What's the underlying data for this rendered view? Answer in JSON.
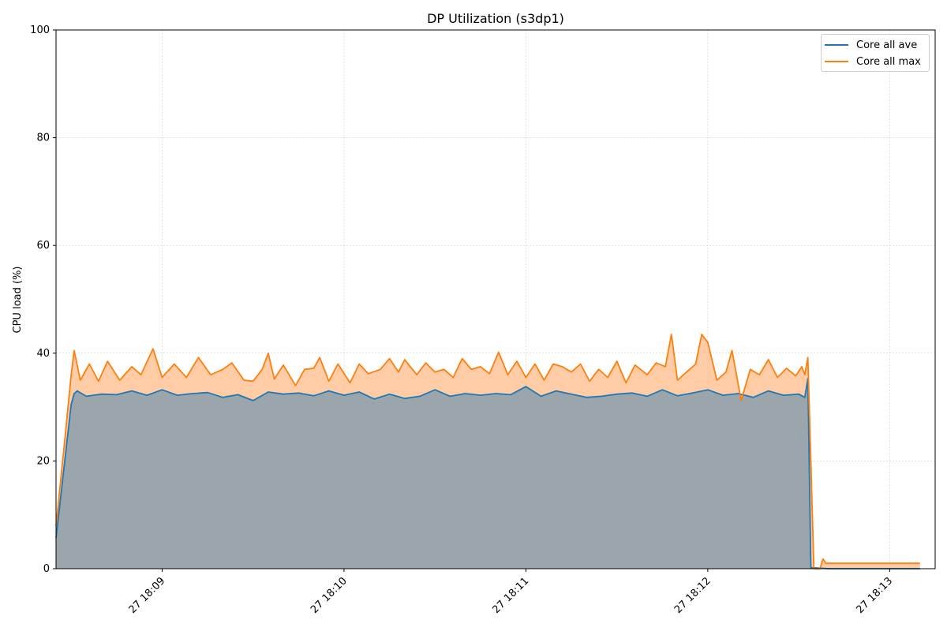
{
  "chart_data": {
    "type": "area",
    "title": "DP Utilization (s3dp1)",
    "xlabel": "",
    "ylabel": "CPU load (%)",
    "x_type": "time",
    "xlim": [
      "18:08:25",
      "18:13:15"
    ],
    "ylim": [
      0,
      100
    ],
    "yticks": [
      0,
      20,
      40,
      60,
      80,
      100
    ],
    "xticks": [
      {
        "time": "18:09:00",
        "label": "27 18:09"
      },
      {
        "time": "18:10:00",
        "label": "27 18:10"
      },
      {
        "time": "18:11:00",
        "label": "27 18:11"
      },
      {
        "time": "18:12:00",
        "label": "27 18:12"
      },
      {
        "time": "18:13:00",
        "label": "27 18:13"
      }
    ],
    "grid": true,
    "legend_position": "top-right",
    "series": [
      {
        "name": "Core all ave",
        "color": "#1f77b4",
        "fill": "#1f77b4",
        "points": [
          [
            "18:08:25",
            5.7
          ],
          [
            "18:08:30",
            30.5
          ],
          [
            "18:08:31",
            32.5
          ],
          [
            "18:08:32",
            33.0
          ],
          [
            "18:08:35",
            32.0
          ],
          [
            "18:08:40",
            32.4
          ],
          [
            "18:08:45",
            32.3
          ],
          [
            "18:08:50",
            33.0
          ],
          [
            "18:08:55",
            32.2
          ],
          [
            "18:09:00",
            33.2
          ],
          [
            "18:09:05",
            32.2
          ],
          [
            "18:09:10",
            32.5
          ],
          [
            "18:09:15",
            32.7
          ],
          [
            "18:09:20",
            31.8
          ],
          [
            "18:09:25",
            32.3
          ],
          [
            "18:09:30",
            31.2
          ],
          [
            "18:09:35",
            32.8
          ],
          [
            "18:09:40",
            32.4
          ],
          [
            "18:09:45",
            32.6
          ],
          [
            "18:09:50",
            32.1
          ],
          [
            "18:09:55",
            33.0
          ],
          [
            "18:10:00",
            32.2
          ],
          [
            "18:10:05",
            32.8
          ],
          [
            "18:10:10",
            31.5
          ],
          [
            "18:10:15",
            32.4
          ],
          [
            "18:10:20",
            31.6
          ],
          [
            "18:10:25",
            32.0
          ],
          [
            "18:10:30",
            33.2
          ],
          [
            "18:10:35",
            32.0
          ],
          [
            "18:10:40",
            32.5
          ],
          [
            "18:10:45",
            32.2
          ],
          [
            "18:10:50",
            32.5
          ],
          [
            "18:10:55",
            32.3
          ],
          [
            "18:11:00",
            33.8
          ],
          [
            "18:11:05",
            32.0
          ],
          [
            "18:11:10",
            33.0
          ],
          [
            "18:11:15",
            32.4
          ],
          [
            "18:11:20",
            31.8
          ],
          [
            "18:11:25",
            32.0
          ],
          [
            "18:11:30",
            32.4
          ],
          [
            "18:11:35",
            32.6
          ],
          [
            "18:11:40",
            32.0
          ],
          [
            "18:11:45",
            33.2
          ],
          [
            "18:11:50",
            32.1
          ],
          [
            "18:11:55",
            32.6
          ],
          [
            "18:12:00",
            33.2
          ],
          [
            "18:12:05",
            32.2
          ],
          [
            "18:12:10",
            32.5
          ],
          [
            "18:12:15",
            31.8
          ],
          [
            "18:12:20",
            33.0
          ],
          [
            "18:12:25",
            32.2
          ],
          [
            "18:12:30",
            32.4
          ],
          [
            "18:12:32",
            31.8
          ],
          [
            "18:12:33",
            35.3
          ],
          [
            "18:12:34",
            0.2
          ],
          [
            "18:12:40",
            0.0
          ],
          [
            "18:13:10",
            0.0
          ]
        ]
      },
      {
        "name": "Core all max",
        "color": "#ff7f0e",
        "fill": "#ffbb88",
        "points": [
          [
            "18:08:25",
            8.0
          ],
          [
            "18:08:28",
            24.5
          ],
          [
            "18:08:30",
            36.0
          ],
          [
            "18:08:31",
            40.5
          ],
          [
            "18:08:33",
            35.0
          ],
          [
            "18:08:36",
            38.0
          ],
          [
            "18:08:39",
            34.8
          ],
          [
            "18:08:42",
            38.5
          ],
          [
            "18:08:46",
            35.0
          ],
          [
            "18:08:50",
            37.5
          ],
          [
            "18:08:53",
            36.0
          ],
          [
            "18:08:57",
            40.8
          ],
          [
            "18:09:00",
            35.5
          ],
          [
            "18:09:04",
            38.0
          ],
          [
            "18:09:08",
            35.5
          ],
          [
            "18:09:12",
            39.2
          ],
          [
            "18:09:16",
            36.0
          ],
          [
            "18:09:20",
            37.0
          ],
          [
            "18:09:23",
            38.2
          ],
          [
            "18:09:27",
            35.0
          ],
          [
            "18:09:30",
            34.8
          ],
          [
            "18:09:33",
            37.0
          ],
          [
            "18:09:35",
            40.0
          ],
          [
            "18:09:37",
            35.2
          ],
          [
            "18:09:40",
            37.8
          ],
          [
            "18:09:44",
            34.0
          ],
          [
            "18:09:47",
            37.0
          ],
          [
            "18:09:50",
            37.2
          ],
          [
            "18:09:52",
            39.2
          ],
          [
            "18:09:55",
            34.8
          ],
          [
            "18:09:58",
            38.0
          ],
          [
            "18:10:02",
            34.5
          ],
          [
            "18:10:05",
            38.0
          ],
          [
            "18:10:08",
            36.2
          ],
          [
            "18:10:12",
            37.0
          ],
          [
            "18:10:15",
            39.0
          ],
          [
            "18:10:18",
            36.5
          ],
          [
            "18:10:20",
            38.8
          ],
          [
            "18:10:24",
            36.0
          ],
          [
            "18:10:27",
            38.2
          ],
          [
            "18:10:30",
            36.5
          ],
          [
            "18:10:33",
            37.0
          ],
          [
            "18:10:36",
            35.5
          ],
          [
            "18:10:39",
            39.0
          ],
          [
            "18:10:42",
            37.0
          ],
          [
            "18:10:45",
            37.5
          ],
          [
            "18:10:48",
            36.2
          ],
          [
            "18:10:51",
            40.2
          ],
          [
            "18:10:54",
            36.0
          ],
          [
            "18:10:57",
            38.5
          ],
          [
            "18:11:00",
            35.5
          ],
          [
            "18:11:03",
            38.0
          ],
          [
            "18:11:06",
            35.0
          ],
          [
            "18:11:09",
            38.0
          ],
          [
            "18:11:12",
            37.5
          ],
          [
            "18:11:15",
            36.5
          ],
          [
            "18:11:18",
            38.0
          ],
          [
            "18:11:21",
            34.8
          ],
          [
            "18:11:24",
            37.0
          ],
          [
            "18:11:27",
            35.5
          ],
          [
            "18:11:30",
            38.5
          ],
          [
            "18:11:33",
            34.5
          ],
          [
            "18:11:36",
            37.8
          ],
          [
            "18:11:40",
            36.0
          ],
          [
            "18:11:43",
            38.2
          ],
          [
            "18:11:46",
            37.5
          ],
          [
            "18:11:48",
            43.5
          ],
          [
            "18:11:50",
            35.0
          ],
          [
            "18:11:53",
            36.5
          ],
          [
            "18:11:56",
            38.0
          ],
          [
            "18:11:58",
            43.5
          ],
          [
            "18:12:00",
            42.0
          ],
          [
            "18:12:03",
            35.0
          ],
          [
            "18:12:06",
            36.5
          ],
          [
            "18:12:08",
            40.5
          ],
          [
            "18:12:11",
            31.2
          ],
          [
            "18:12:14",
            37.0
          ],
          [
            "18:12:17",
            36.0
          ],
          [
            "18:12:20",
            38.8
          ],
          [
            "18:12:23",
            35.5
          ],
          [
            "18:12:26",
            37.2
          ],
          [
            "18:12:29",
            35.8
          ],
          [
            "18:12:31",
            37.5
          ],
          [
            "18:12:32",
            36.0
          ],
          [
            "18:12:33",
            39.2
          ],
          [
            "18:12:34",
            20.0
          ],
          [
            "18:12:35",
            0.0
          ],
          [
            "18:12:37",
            0.0
          ],
          [
            "18:12:38",
            1.8
          ],
          [
            "18:12:39",
            1.0
          ],
          [
            "18:13:10",
            1.0
          ]
        ]
      }
    ]
  }
}
